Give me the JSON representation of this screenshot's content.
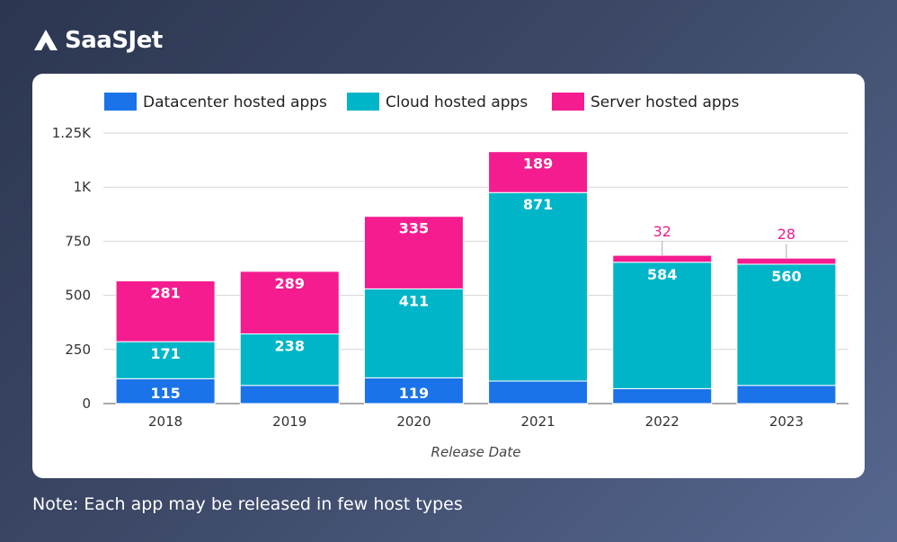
{
  "brand": {
    "name": "SaaSJet"
  },
  "note": "Note: Each app may be released in few host types",
  "chart_data": {
    "type": "bar",
    "stacked": true,
    "categories": [
      "2018",
      "2019",
      "2020",
      "2021",
      "2022",
      "2023"
    ],
    "series": [
      {
        "name": "Datacenter hosted apps",
        "color": "#1a73e8",
        "values": [
          115,
          84,
          119,
          104,
          69,
          84
        ]
      },
      {
        "name": "Cloud hosted apps",
        "color": "#00b5c8",
        "values": [
          171,
          238,
          411,
          871,
          584,
          560
        ]
      },
      {
        "name": "Server hosted  apps",
        "color": "#f41c8f",
        "values": [
          281,
          289,
          335,
          189,
          32,
          28
        ]
      }
    ],
    "title": "",
    "xlabel": "Release Date",
    "ylabel": "",
    "ylim": [
      0,
      1250
    ],
    "yticks": [
      0,
      250,
      500,
      750,
      1000,
      1250
    ],
    "ytick_labels": [
      "0",
      "250",
      "500",
      "750",
      "1K",
      "1.25K"
    ],
    "grid": true,
    "legend": "top-left"
  }
}
